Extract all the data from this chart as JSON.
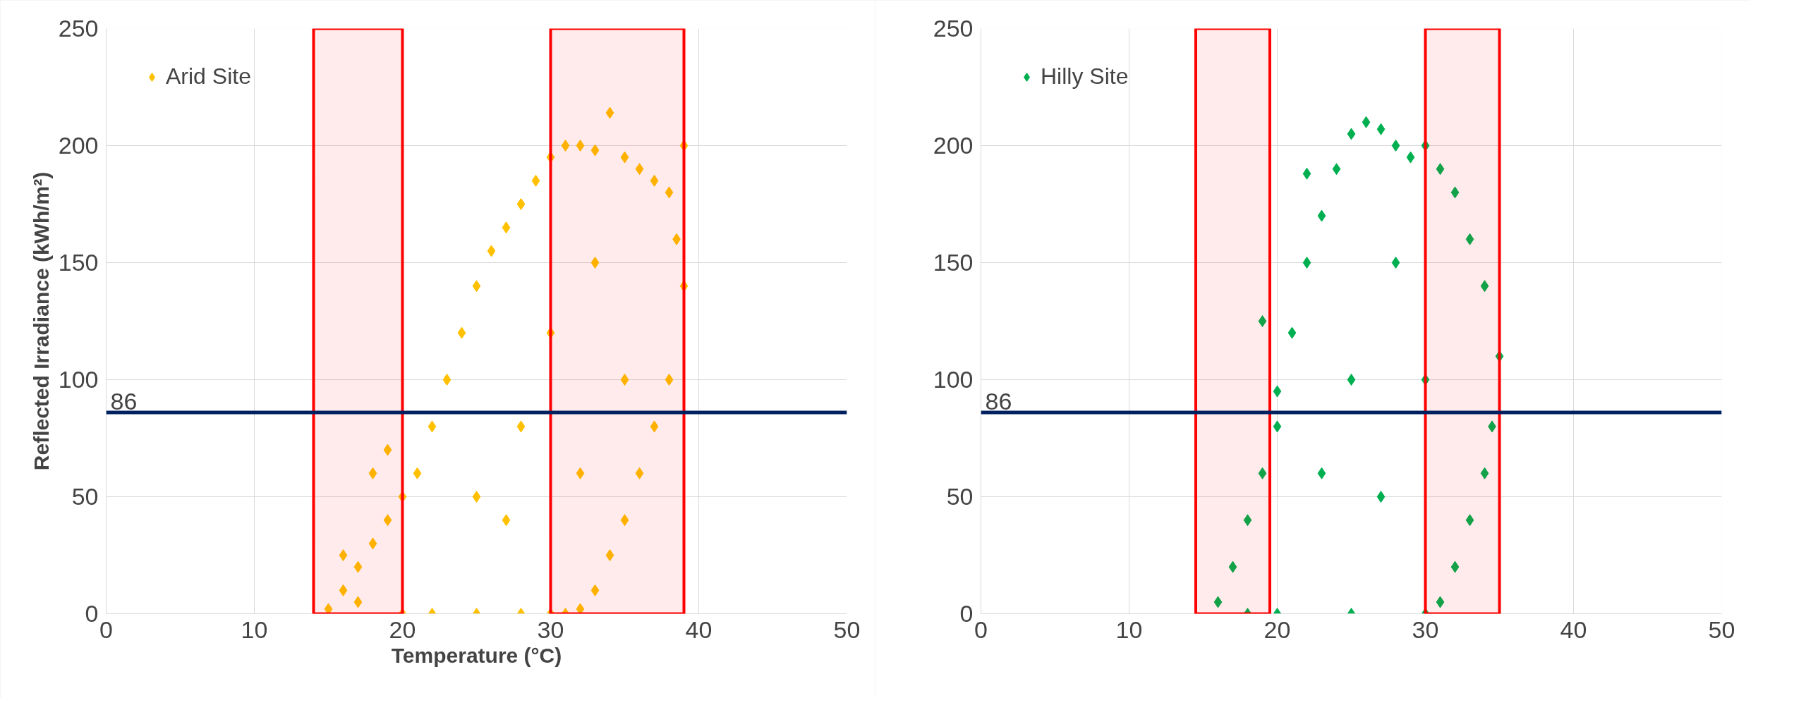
{
  "chart_data": [
    {
      "type": "scatter",
      "xlabel": "Temperature (°C)",
      "ylabel": "Reflected Irradiance (kWh/m²)",
      "xlim": [
        0,
        50
      ],
      "ylim": [
        0,
        250
      ],
      "xticks": [
        0,
        10,
        20,
        30,
        40,
        50
      ],
      "yticks": [
        0,
        50,
        100,
        150,
        200,
        250
      ],
      "grid": true,
      "legend": "top left",
      "marker": "diamond",
      "series": [
        {
          "name": "Arid Site",
          "color": "#ffc000",
          "x": [
            15,
            16,
            17,
            18,
            19,
            20,
            21,
            22,
            23,
            24,
            25,
            26,
            27,
            28,
            29,
            30,
            31,
            32,
            33,
            34,
            35,
            36,
            37,
            38,
            38.5,
            39,
            39,
            38,
            37,
            36,
            35,
            34,
            33,
            32,
            31,
            30,
            28,
            25,
            22,
            20,
            25,
            28,
            30,
            33,
            35,
            27,
            32,
            16,
            17,
            19,
            18
          ],
          "values": [
            2,
            10,
            20,
            30,
            40,
            50,
            60,
            80,
            100,
            120,
            140,
            155,
            165,
            175,
            185,
            195,
            200,
            200,
            198,
            214,
            195,
            190,
            185,
            180,
            160,
            200,
            140,
            100,
            80,
            60,
            40,
            25,
            10,
            2,
            0,
            0,
            0,
            0,
            0,
            0,
            50,
            80,
            120,
            150,
            100,
            40,
            60,
            25,
            5,
            70,
            60
          ]
        }
      ],
      "ref_lines": [
        {
          "axis": "y",
          "value": 86,
          "label": "86",
          "color": "#002060"
        }
      ],
      "bands": [
        {
          "axis": "x",
          "from": 14,
          "to": 20,
          "color": "#ff0000"
        },
        {
          "axis": "x",
          "from": 30,
          "to": 39,
          "color": "#ff0000"
        }
      ]
    },
    {
      "type": "scatter",
      "xlim": [
        0,
        50
      ],
      "ylim": [
        0,
        250
      ],
      "xticks": [
        0,
        10,
        20,
        30,
        40,
        50
      ],
      "yticks": [
        0,
        50,
        100,
        150,
        200,
        250
      ],
      "grid": true,
      "legend": "top left",
      "marker": "diamond",
      "series": [
        {
          "name": "Hilly Site",
          "color": "#00b050",
          "x": [
            16,
            17,
            18,
            19,
            20,
            21,
            22,
            23,
            24,
            25,
            26,
            27,
            28,
            29,
            30,
            31,
            32,
            33,
            34,
            35,
            34.5,
            34,
            33,
            32,
            31,
            30,
            25,
            20,
            18,
            19,
            22,
            20,
            25,
            28,
            27,
            30,
            23
          ],
          "values": [
            5,
            20,
            40,
            60,
            80,
            120,
            150,
            170,
            190,
            205,
            210,
            207,
            200,
            195,
            200,
            190,
            180,
            160,
            140,
            110,
            80,
            60,
            40,
            20,
            5,
            0,
            0,
            0,
            0,
            125,
            188,
            95,
            100,
            150,
            50,
            100,
            60
          ]
        }
      ],
      "ref_lines": [
        {
          "axis": "y",
          "value": 86,
          "label": "86",
          "color": "#002060"
        }
      ],
      "bands": [
        {
          "axis": "x",
          "from": 14.5,
          "to": 19.5,
          "color": "#ff0000"
        },
        {
          "axis": "x",
          "from": 30,
          "to": 35,
          "color": "#ff0000"
        }
      ]
    }
  ]
}
